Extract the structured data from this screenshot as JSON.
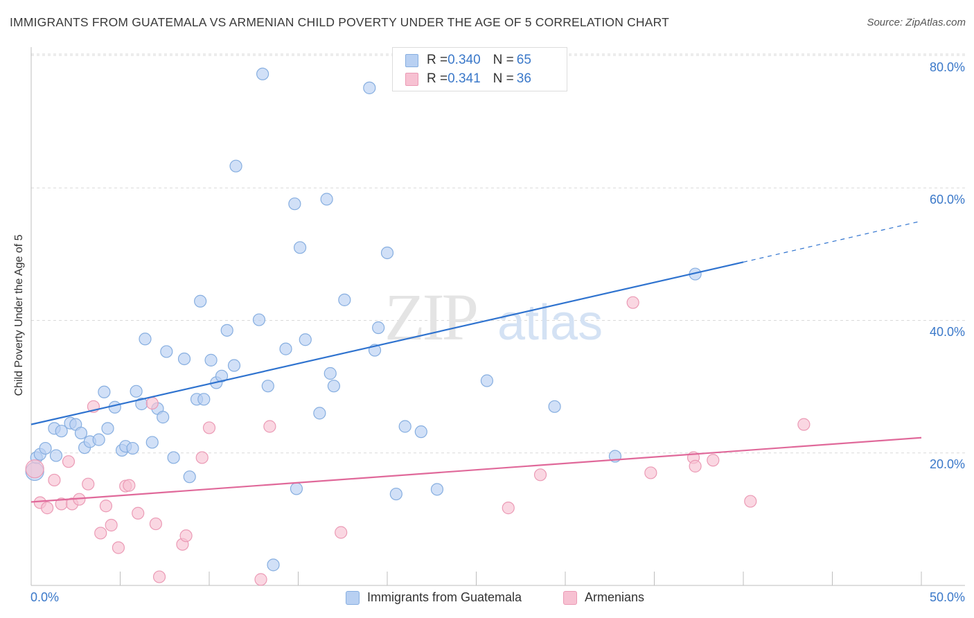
{
  "header": {
    "title": "IMMIGRANTS FROM GUATEMALA VS ARMENIAN CHILD POVERTY UNDER THE AGE OF 5 CORRELATION CHART",
    "source": "Source: ZipAtlas.com"
  },
  "legend": {
    "series1": {
      "r_label": "R = ",
      "r_value": "0.340",
      "n_label": "N = ",
      "n_value": "65"
    },
    "series2": {
      "r_label": "R = ",
      "r_value": "0.341",
      "n_label": "N = ",
      "n_value": "36"
    }
  },
  "watermark": {
    "zip": "ZIP",
    "atlas": "atlas"
  },
  "colors": {
    "blue_fill": "#b8d0f2",
    "blue_stroke": "#86aee0",
    "blue_line": "#2f73cf",
    "pink_fill": "#f7c1d2",
    "pink_stroke": "#eb9ab5",
    "pink_line": "#e0699a",
    "axis_text": "#3a78c9",
    "grid": "#d9d9d9"
  },
  "chart_data": {
    "type": "scatter",
    "title": "IMMIGRANTS FROM GUATEMALA VS ARMENIAN CHILD POVERTY UNDER THE AGE OF 5 CORRELATION CHART",
    "xlabel": "",
    "ylabel": "Child Poverty Under the Age of 5",
    "xlim": [
      0,
      50
    ],
    "ylim": [
      0,
      80
    ],
    "x_tick_labels": [
      "0.0%",
      "50.0%"
    ],
    "y_tick_labels": [
      "20.0%",
      "40.0%",
      "60.0%",
      "80.0%"
    ],
    "y_tick_values": [
      20,
      40,
      60,
      80
    ],
    "grid": true,
    "legend_position": "top-center",
    "series": [
      {
        "name": "Immigrants from Guatemala",
        "color": "#b8d0f2",
        "trend": {
          "x": [
            0,
            40
          ],
          "y": [
            24.3,
            48.8
          ],
          "dashed_to": [
            50,
            55
          ]
        },
        "points": [
          [
            0.2,
            17.2
          ],
          [
            0.3,
            19.3
          ],
          [
            0.5,
            19.8
          ],
          [
            0.8,
            20.7
          ],
          [
            1.3,
            23.7
          ],
          [
            1.7,
            23.3
          ],
          [
            1.4,
            19.6
          ],
          [
            2.2,
            24.5
          ],
          [
            2.5,
            24.3
          ],
          [
            2.8,
            23.0
          ],
          [
            3.0,
            20.8
          ],
          [
            3.3,
            21.7
          ],
          [
            3.8,
            22.0
          ],
          [
            4.1,
            29.2
          ],
          [
            4.3,
            23.7
          ],
          [
            4.7,
            26.9
          ],
          [
            5.1,
            20.4
          ],
          [
            5.3,
            21.0
          ],
          [
            5.7,
            20.7
          ],
          [
            5.9,
            29.3
          ],
          [
            6.2,
            27.4
          ],
          [
            6.4,
            37.2
          ],
          [
            6.8,
            21.6
          ],
          [
            7.1,
            26.7
          ],
          [
            7.4,
            25.4
          ],
          [
            7.6,
            35.3
          ],
          [
            8.0,
            19.3
          ],
          [
            8.6,
            34.2
          ],
          [
            8.9,
            16.4
          ],
          [
            9.3,
            28.1
          ],
          [
            9.5,
            42.9
          ],
          [
            9.7,
            28.1
          ],
          [
            10.1,
            34.0
          ],
          [
            10.4,
            30.6
          ],
          [
            10.7,
            31.6
          ],
          [
            11.0,
            38.5
          ],
          [
            11.4,
            33.2
          ],
          [
            11.5,
            63.3
          ],
          [
            12.8,
            40.1
          ],
          [
            13.0,
            77.2
          ],
          [
            13.3,
            30.1
          ],
          [
            13.6,
            3.1
          ],
          [
            14.3,
            35.7
          ],
          [
            14.8,
            57.6
          ],
          [
            14.9,
            14.6
          ],
          [
            15.1,
            51.0
          ],
          [
            15.4,
            37.1
          ],
          [
            16.2,
            26.0
          ],
          [
            16.6,
            58.3
          ],
          [
            16.8,
            32.0
          ],
          [
            17.0,
            30.1
          ],
          [
            17.6,
            43.1
          ],
          [
            19.0,
            75.1
          ],
          [
            19.3,
            35.5
          ],
          [
            19.5,
            38.9
          ],
          [
            20.0,
            50.2
          ],
          [
            20.5,
            13.8
          ],
          [
            21.0,
            24.0
          ],
          [
            21.9,
            23.2
          ],
          [
            22.8,
            14.5
          ],
          [
            24.0,
            77.0
          ],
          [
            25.6,
            30.9
          ],
          [
            29.4,
            27.0
          ],
          [
            32.8,
            19.5
          ],
          [
            37.3,
            47.0
          ]
        ]
      },
      {
        "name": "Armenians",
        "color": "#f7c1d2",
        "trend": {
          "x": [
            0,
            50
          ],
          "y": [
            12.6,
            22.3
          ]
        },
        "points": [
          [
            0.2,
            17.6
          ],
          [
            0.5,
            12.5
          ],
          [
            0.9,
            11.7
          ],
          [
            1.3,
            15.9
          ],
          [
            1.7,
            12.3
          ],
          [
            2.1,
            18.7
          ],
          [
            2.3,
            12.3
          ],
          [
            2.7,
            13.0
          ],
          [
            3.2,
            15.3
          ],
          [
            3.5,
            27.0
          ],
          [
            3.9,
            7.9
          ],
          [
            4.2,
            12.0
          ],
          [
            4.5,
            9.1
          ],
          [
            4.9,
            5.7
          ],
          [
            5.3,
            15.0
          ],
          [
            5.5,
            15.1
          ],
          [
            6.0,
            10.9
          ],
          [
            6.8,
            27.5
          ],
          [
            7.0,
            9.3
          ],
          [
            7.2,
            1.3
          ],
          [
            8.5,
            6.2
          ],
          [
            8.7,
            7.5
          ],
          [
            9.6,
            19.3
          ],
          [
            10.0,
            23.8
          ],
          [
            12.9,
            0.9
          ],
          [
            13.4,
            24.0
          ],
          [
            17.4,
            8.0
          ],
          [
            26.8,
            11.7
          ],
          [
            28.6,
            16.7
          ],
          [
            33.8,
            42.7
          ],
          [
            34.8,
            17.0
          ],
          [
            37.2,
            19.3
          ],
          [
            37.3,
            18.0
          ],
          [
            38.3,
            18.9
          ],
          [
            40.4,
            12.7
          ],
          [
            43.4,
            24.3
          ]
        ]
      }
    ]
  }
}
